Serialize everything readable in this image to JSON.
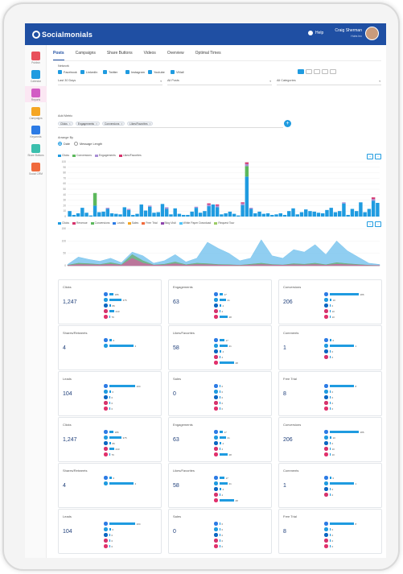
{
  "header": {
    "logo": "Socialmonials",
    "help": "Help",
    "user_name": "Craig Sherman",
    "user_sub": "Hubs Inc"
  },
  "sidebar": [
    {
      "label": "Publish",
      "color": "#e8505b"
    },
    {
      "label": "Calendar",
      "color": "#1f9be0"
    },
    {
      "label": "Reports",
      "color": "#d25cc4"
    },
    {
      "label": "Campaigns",
      "color": "#f5a623"
    },
    {
      "label": "Keywords",
      "color": "#2c7be5"
    },
    {
      "label": "Share Buttons",
      "color": "#3bbfad"
    },
    {
      "label": "Social CRM",
      "color": "#f06a3c"
    }
  ],
  "tabs": [
    "Posts",
    "Campaigns",
    "Share Buttons",
    "Videos",
    "Overview",
    "Optimal Times"
  ],
  "filters": {
    "network_label": "Network",
    "networks": [
      "Facebook",
      "LinkedIn",
      "Twitter",
      "Instagram",
      "Youtube",
      "VMall"
    ],
    "date": "Last 30 Days",
    "posts": "All Posts",
    "categories": "All Categories",
    "add_metric_label": "Add Metric",
    "metrics": [
      "Clicks",
      "Engagements",
      "Conversions",
      "Likes/Favorites"
    ],
    "add_button": "+",
    "arrange_label": "Arrange By",
    "arrange_options": [
      "Date",
      "Message Length"
    ]
  },
  "bar_chart": {
    "legend": [
      {
        "name": "Clicks",
        "color": "#1f9be0"
      },
      {
        "name": "Conversions",
        "color": "#5cb85c"
      },
      {
        "name": "Engagements",
        "color": "#a98fd6"
      },
      {
        "name": "Likes/Favorites",
        "color": "#d6336c"
      }
    ],
    "y_ticks": [
      "100",
      "90",
      "80",
      "70",
      "60",
      "50",
      "40",
      "30",
      "20",
      "10",
      "0"
    ],
    "zoom_in": "+",
    "zoom_out": "−"
  },
  "area_chart": {
    "legend": [
      {
        "name": "Clicks",
        "color": "#1f9be0"
      },
      {
        "name": "Revenue",
        "color": "#d6336c"
      },
      {
        "name": "Conversions",
        "color": "#5cb85c"
      },
      {
        "name": "Leads",
        "color": "#2c7be5"
      },
      {
        "name": "Sales",
        "color": "#f5a623"
      },
      {
        "name": "Free Trial",
        "color": "#f06a3c"
      },
      {
        "name": "Blog Visit",
        "color": "#8e44ad"
      },
      {
        "name": "White Paper Download",
        "color": "#4fc3f7"
      },
      {
        "name": "Request Tour",
        "color": "#9ccc65"
      }
    ],
    "y_ticks": [
      "150",
      "100",
      "50",
      "0"
    ],
    "zoom_in": "+",
    "zoom_out": "−"
  },
  "chart_data": [
    {
      "type": "bar",
      "title": "",
      "series": [
        {
          "name": "Clicks",
          "values": [
            10,
            3,
            6,
            16,
            7,
            2,
            20,
            8,
            9,
            14,
            6,
            5,
            4,
            17,
            12,
            3,
            5,
            22,
            11,
            18,
            7,
            8,
            23,
            14,
            4,
            15,
            5,
            3,
            3,
            9,
            16,
            7,
            10,
            19,
            22,
            17,
            4,
            6,
            9,
            5,
            2,
            21,
            73,
            14,
            6,
            9,
            5,
            6,
            3,
            4,
            6,
            3,
            10,
            15,
            4,
            8,
            13,
            10,
            9,
            7,
            6,
            12,
            16,
            8,
            10,
            24,
            3,
            14,
            10,
            26,
            8,
            14,
            29,
            25
          ]
        },
        {
          "name": "Conversions",
          "values": [
            0,
            0,
            0,
            0,
            0,
            0,
            23,
            0,
            0,
            0,
            0,
            0,
            0,
            0,
            0,
            0,
            0,
            0,
            0,
            0,
            0,
            0,
            0,
            0,
            0,
            0,
            0,
            0,
            0,
            0,
            0,
            0,
            0,
            0,
            0,
            0,
            0,
            0,
            0,
            0,
            0,
            0,
            19,
            0,
            0,
            0,
            0,
            0,
            0,
            0,
            0,
            0,
            0,
            0,
            0,
            0,
            0,
            0,
            0,
            0,
            0,
            0,
            0,
            0,
            0,
            0,
            0,
            0,
            0,
            0,
            0,
            0,
            0,
            0
          ]
        },
        {
          "name": "Engagements",
          "values": [
            0,
            0,
            0,
            0,
            0,
            0,
            0,
            0,
            0,
            2,
            0,
            0,
            0,
            0,
            2,
            0,
            0,
            0,
            0,
            2,
            0,
            0,
            0,
            3,
            0,
            0,
            0,
            0,
            0,
            0,
            2,
            0,
            0,
            3,
            0,
            3,
            0,
            0,
            0,
            0,
            0,
            3,
            4,
            2,
            0,
            0,
            0,
            0,
            0,
            0,
            0,
            0,
            0,
            0,
            0,
            0,
            0,
            0,
            0,
            0,
            0,
            0,
            0,
            0,
            0,
            2,
            0,
            0,
            0,
            0,
            0,
            0,
            3,
            0
          ]
        },
        {
          "name": "Likes/Favorites",
          "values": [
            0,
            0,
            0,
            0,
            0,
            0,
            0,
            0,
            0,
            0,
            0,
            0,
            0,
            0,
            0,
            0,
            0,
            0,
            0,
            0,
            0,
            0,
            0,
            0,
            0,
            0,
            0,
            0,
            0,
            0,
            0,
            0,
            0,
            2,
            0,
            2,
            0,
            0,
            0,
            0,
            0,
            2,
            3,
            0,
            0,
            0,
            0,
            0,
            0,
            0,
            0,
            0,
            0,
            0,
            0,
            0,
            0,
            0,
            0,
            0,
            0,
            0,
            0,
            0,
            0,
            0,
            0,
            0,
            0,
            0,
            0,
            0,
            3,
            0
          ]
        }
      ],
      "ylim": [
        0,
        100
      ],
      "xlabel": "",
      "ylabel": ""
    },
    {
      "type": "area",
      "title": "",
      "x": [
        "1",
        "2",
        "3",
        "4",
        "5",
        "6",
        "7",
        "8",
        "9",
        "10",
        "11",
        "12",
        "13",
        "14",
        "15",
        "16",
        "17",
        "18",
        "19",
        "20",
        "21",
        "22",
        "23",
        "24",
        "25",
        "26",
        "27",
        "28",
        "29",
        "30"
      ],
      "series": [
        {
          "name": "Clicks",
          "values": [
            5,
            35,
            25,
            18,
            30,
            12,
            55,
            40,
            10,
            20,
            45,
            15,
            30,
            95,
            70,
            50,
            20,
            30,
            105,
            40,
            30,
            65,
            55,
            85,
            45,
            100,
            60,
            35,
            10,
            5
          ]
        },
        {
          "name": "Conversions",
          "values": [
            2,
            10,
            8,
            5,
            12,
            4,
            45,
            20,
            3,
            6,
            15,
            4,
            10,
            8,
            5,
            4,
            2,
            6,
            10,
            5,
            3,
            8,
            6,
            10,
            4,
            12,
            8,
            5,
            2,
            1
          ]
        },
        {
          "name": "Revenue",
          "values": [
            1,
            5,
            4,
            3,
            6,
            2,
            30,
            10,
            2,
            3,
            8,
            2,
            5,
            4,
            3,
            2,
            1,
            3,
            5,
            3,
            2,
            4,
            3,
            5,
            2,
            6,
            4,
            3,
            1,
            1
          ]
        }
      ],
      "ylim": [
        0,
        150
      ],
      "xlabel": "",
      "ylabel": ""
    }
  ],
  "cards": [
    {
      "title": "Clicks",
      "value": "1,247",
      "bars": [
        {
          "w": 5,
          "n": "186"
        },
        {
          "w": 15,
          "n": "375"
        },
        {
          "w": 2,
          "n": "86"
        },
        {
          "w": 6,
          "n": "243"
        },
        {
          "w": 1,
          "n": "76"
        }
      ]
    },
    {
      "title": "Engagements",
      "value": "63",
      "bars": [
        {
          "w": 4,
          "n": "17"
        },
        {
          "w": 8,
          "n": "21"
        },
        {
          "w": 2,
          "n": "4"
        },
        {
          "w": 1,
          "n": "2"
        },
        {
          "w": 10,
          "n": "28"
        }
      ]
    },
    {
      "title": "Conversions",
      "value": "206",
      "bars": [
        {
          "w": 36,
          "n": "186"
        },
        {
          "w": 2,
          "n": "10"
        },
        {
          "w": 1,
          "n": "0"
        },
        {
          "w": 1,
          "n": "10"
        },
        {
          "w": 1,
          "n": "10"
        }
      ]
    },
    {
      "title": "Shares/Retweets",
      "value": "4",
      "bars": [
        {
          "w": 3,
          "n": "0"
        },
        {
          "w": 30,
          "n": "4"
        }
      ]
    },
    {
      "title": "Likes/Favorites",
      "value": "58",
      "bars": [
        {
          "w": 6,
          "n": "17"
        },
        {
          "w": 10,
          "n": "21"
        },
        {
          "w": 2,
          "n": "4"
        },
        {
          "w": 1,
          "n": "2"
        },
        {
          "w": 18,
          "n": "28"
        }
      ]
    },
    {
      "title": "Comments",
      "value": "1",
      "bars": [
        {
          "w": 2,
          "n": "0"
        },
        {
          "w": 30,
          "n": "1"
        },
        {
          "w": 1,
          "n": "0"
        },
        {
          "w": 1,
          "n": "0"
        }
      ]
    },
    {
      "title": "Leads",
      "value": "104",
      "bars": [
        {
          "w": 32,
          "n": "104"
        },
        {
          "w": 2,
          "n": "0"
        },
        {
          "w": 1,
          "n": "0"
        },
        {
          "w": 1,
          "n": "0"
        },
        {
          "w": 1,
          "n": "0"
        }
      ]
    },
    {
      "title": "Sales",
      "value": "0",
      "bars": [
        {
          "w": 1,
          "n": "0"
        },
        {
          "w": 1,
          "n": "0"
        },
        {
          "w": 1,
          "n": "0"
        },
        {
          "w": 1,
          "n": "0"
        },
        {
          "w": 1,
          "n": "0"
        }
      ]
    },
    {
      "title": "Free Trial",
      "value": "8",
      "bars": [
        {
          "w": 30,
          "n": "8"
        },
        {
          "w": 1,
          "n": "0"
        },
        {
          "w": 1,
          "n": "0"
        },
        {
          "w": 1,
          "n": "0"
        },
        {
          "w": 1,
          "n": "0"
        }
      ]
    },
    {
      "title": "Clicks",
      "value": "1,247",
      "bars": [
        {
          "w": 5,
          "n": "186"
        },
        {
          "w": 15,
          "n": "375"
        },
        {
          "w": 2,
          "n": "86"
        },
        {
          "w": 6,
          "n": "243"
        },
        {
          "w": 1,
          "n": "76"
        }
      ]
    },
    {
      "title": "Engagements",
      "value": "63",
      "bars": [
        {
          "w": 4,
          "n": "17"
        },
        {
          "w": 8,
          "n": "21"
        },
        {
          "w": 2,
          "n": "4"
        },
        {
          "w": 1,
          "n": "2"
        },
        {
          "w": 10,
          "n": "28"
        }
      ]
    },
    {
      "title": "Conversions",
      "value": "206",
      "bars": [
        {
          "w": 36,
          "n": "186"
        },
        {
          "w": 2,
          "n": "10"
        },
        {
          "w": 1,
          "n": "0"
        },
        {
          "w": 1,
          "n": "10"
        },
        {
          "w": 1,
          "n": "10"
        }
      ]
    },
    {
      "title": "Shares/Retweets",
      "value": "4",
      "bars": [
        {
          "w": 3,
          "n": "0"
        },
        {
          "w": 30,
          "n": "4"
        }
      ]
    },
    {
      "title": "Likes/Favorites",
      "value": "58",
      "bars": [
        {
          "w": 6,
          "n": "17"
        },
        {
          "w": 10,
          "n": "21"
        },
        {
          "w": 2,
          "n": "4"
        },
        {
          "w": 1,
          "n": "2"
        },
        {
          "w": 18,
          "n": "28"
        }
      ]
    },
    {
      "title": "Comments",
      "value": "1",
      "bars": [
        {
          "w": 2,
          "n": "0"
        },
        {
          "w": 30,
          "n": "1"
        },
        {
          "w": 1,
          "n": "0"
        },
        {
          "w": 1,
          "n": "0"
        }
      ]
    },
    {
      "title": "Leads",
      "value": "104",
      "bars": [
        {
          "w": 32,
          "n": "104"
        },
        {
          "w": 2,
          "n": "0"
        },
        {
          "w": 1,
          "n": "0"
        },
        {
          "w": 1,
          "n": "0"
        },
        {
          "w": 1,
          "n": "0"
        }
      ]
    },
    {
      "title": "Sales",
      "value": "0",
      "bars": [
        {
          "w": 1,
          "n": "0"
        },
        {
          "w": 1,
          "n": "0"
        },
        {
          "w": 1,
          "n": "0"
        },
        {
          "w": 1,
          "n": "0"
        },
        {
          "w": 1,
          "n": "0"
        }
      ]
    },
    {
      "title": "Free Trial",
      "value": "8",
      "bars": [
        {
          "w": 30,
          "n": "8"
        },
        {
          "w": 1,
          "n": "0"
        },
        {
          "w": 1,
          "n": "0"
        },
        {
          "w": 1,
          "n": "0"
        },
        {
          "w": 1,
          "n": "0"
        }
      ]
    }
  ],
  "social_colors": [
    "#2c7be5",
    "#1f9be0",
    "#0a66c2",
    "#d6336c",
    "#e1306c"
  ]
}
